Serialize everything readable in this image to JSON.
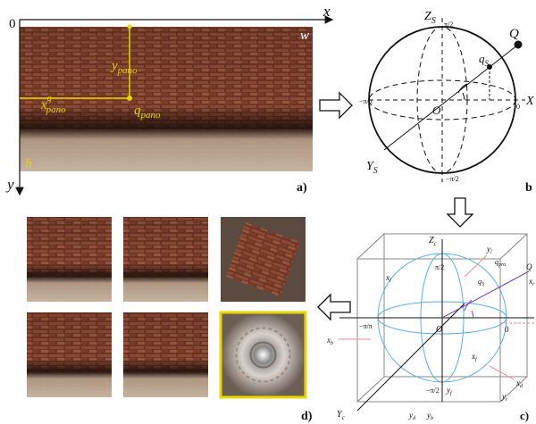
{
  "panel_a": {
    "origin": "0",
    "axis_x": "x",
    "axis_y": "y",
    "width": "w",
    "height": "h",
    "y_pano": {
      "main": "y",
      "sub": "pano"
    },
    "x_pano": {
      "main": "x",
      "sup": "q",
      "sub": "pano"
    },
    "q_pano": {
      "main": "q",
      "sub": "pano"
    },
    "label": "a)"
  },
  "panel_b": {
    "z_axis": {
      "main": "Z",
      "sub": "S"
    },
    "y_axis": {
      "main": "Y",
      "sub": "S"
    },
    "x_axis": "X",
    "point": "Q",
    "q_s": {
      "main": "q",
      "sub": "S"
    },
    "origin": "O",
    "top": "π/2",
    "left": "−π/π",
    "right": "0",
    "bottom": "−π/2",
    "label": "b"
  },
  "panel_c": {
    "z_axis": {
      "main": "Z",
      "sub": "c"
    },
    "y_axis": {
      "main": "Y",
      "sub": "c"
    },
    "top": "π/2",
    "left": "−π/π",
    "origin": "O",
    "right": "0",
    "bottom": "−π/2",
    "q_pro": {
      "main": "q",
      "sub": "pro"
    },
    "q_s": {
      "main": "q",
      "sub": "S"
    },
    "point": "Q",
    "x_l": {
      "main": "x",
      "sub": "l"
    },
    "y_l": {
      "main": "y",
      "sub": "l"
    },
    "x_r": {
      "main": "x",
      "sub": "r"
    },
    "y_r": {
      "main": "y",
      "sub": "r"
    },
    "x_f": {
      "main": "x",
      "sub": "f"
    },
    "y_f": {
      "main": "y",
      "sub": "f"
    },
    "x_b": {
      "main": "x",
      "sub": "b"
    },
    "y_b": {
      "main": "y",
      "sub": "b"
    },
    "x_d": {
      "main": "x",
      "sub": "d"
    },
    "y_d": {
      "main": "y",
      "sub": "d"
    },
    "label": "c)"
  },
  "panel_d": {
    "label": "d)"
  }
}
